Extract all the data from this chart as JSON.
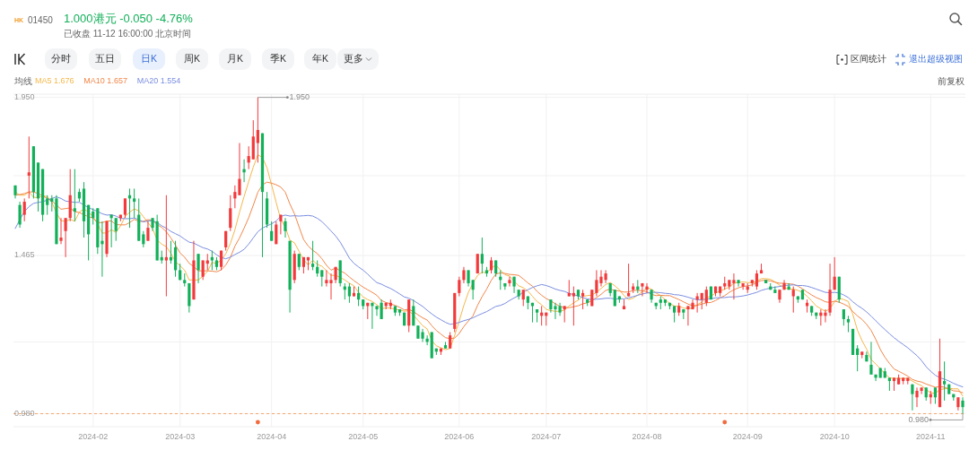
{
  "chart_data": {
    "type": "candlestick",
    "title": "1.000港元 -0.050 -4.76%",
    "subtitle": "已收盘 11-12 16:00:00 北京时间",
    "legend_title": "均线",
    "legend": "top left",
    "grid": true,
    "ylim": [
      0.94,
      1.96
    ],
    "yticks": [
      {
        "value": 1.95,
        "label": "1.950"
      },
      {
        "value": 1.71,
        "label": null
      },
      1.465,
      {
        "value": 1.2,
        "label": null
      },
      {
        "value": 0.98,
        "label": "0.980"
      }
    ],
    "ref_lines": [
      {
        "axis": "y",
        "value": 0.98,
        "color": "#f5a46c",
        "line_style": "dashed"
      }
    ],
    "annotations": [
      "1.950",
      {
        "text": "0.980",
        "y": 0.98
      },
      "HK",
      "01450",
      "分时",
      "五日",
      "日K",
      "周K",
      "月K",
      "季K",
      "年K",
      "更多",
      "区间统计",
      "退出超级视图",
      "前复权"
    ],
    "categories": [
      null,
      null,
      null,
      null,
      null,
      null,
      null,
      null,
      null,
      null,
      null,
      null,
      null,
      null,
      null,
      null,
      null,
      "2024-02",
      null,
      null,
      null,
      null,
      null,
      null,
      null,
      null,
      null,
      null,
      null,
      null,
      null,
      null,
      null,
      null,
      null,
      null,
      "2024-03",
      null,
      null,
      null,
      null,
      null,
      null,
      null,
      null,
      null,
      null,
      null,
      null,
      null,
      null,
      null,
      null,
      null,
      null,
      null,
      "2024-04",
      null,
      null,
      null,
      null,
      null,
      null,
      null,
      null,
      null,
      null,
      null,
      null,
      null,
      null,
      null,
      null,
      null,
      null,
      null,
      "2024-05",
      null,
      null,
      null,
      null,
      null,
      null,
      null,
      null,
      null,
      null,
      null,
      null,
      null,
      null,
      null,
      null,
      null,
      null,
      null,
      null,
      "2024-06",
      null,
      null,
      null,
      null,
      null,
      null,
      null,
      null,
      null,
      null,
      null,
      null,
      null,
      null,
      null,
      null,
      null,
      null,
      "2024-07",
      null,
      null,
      null,
      null,
      null,
      null,
      null,
      null,
      null,
      null,
      null,
      null,
      null,
      null,
      null,
      null,
      null,
      null,
      null,
      null,
      null,
      "2024-08",
      null,
      null,
      null,
      null,
      null,
      null,
      null,
      null,
      null,
      null,
      null,
      null,
      null,
      null,
      null,
      null,
      null,
      null,
      null,
      null,
      null,
      "2024-09",
      null,
      null,
      null,
      null,
      null,
      null,
      null,
      null,
      null,
      null,
      null,
      null,
      null,
      null,
      null,
      null,
      null,
      null,
      "2024-10",
      null,
      null,
      null,
      null,
      null,
      null,
      null,
      null,
      null,
      null,
      null,
      null,
      null,
      null,
      null,
      null,
      null,
      null,
      null,
      null,
      "2024-11",
      null,
      null,
      null,
      null,
      null,
      null,
      null
    ],
    "ohlc": [
      [
        1.68,
        1.68,
        1.64,
        1.65
      ],
      [
        1.62,
        1.63,
        1.55,
        1.56
      ],
      [
        1.59,
        1.64,
        1.57,
        1.63
      ],
      [
        1.71,
        1.83,
        1.64,
        1.72
      ],
      [
        1.8,
        1.8,
        1.64,
        1.66
      ],
      [
        1.75,
        1.75,
        1.6,
        1.64
      ],
      [
        1.73,
        1.73,
        1.57,
        1.59
      ],
      [
        1.64,
        1.65,
        1.59,
        1.62
      ],
      [
        1.64,
        1.65,
        1.6,
        1.63
      ],
      [
        1.64,
        1.65,
        1.5,
        1.5
      ],
      [
        1.51,
        1.58,
        1.5,
        1.52
      ],
      [
        1.54,
        1.58,
        1.46,
        1.58
      ],
      [
        1.58,
        1.73,
        1.57,
        1.65
      ],
      [
        1.61,
        1.73,
        1.57,
        1.6
      ],
      [
        1.66,
        1.67,
        1.63,
        1.64
      ],
      [
        1.67,
        1.69,
        1.52,
        1.57
      ],
      [
        1.62,
        1.62,
        1.45,
        1.53
      ],
      [
        1.6,
        1.61,
        1.56,
        1.58
      ],
      [
        1.61,
        1.61,
        1.47,
        1.49
      ],
      [
        1.51,
        1.57,
        1.4,
        1.5
      ],
      [
        1.47,
        1.57,
        1.46,
        1.57
      ],
      [
        1.59,
        1.59,
        1.49,
        1.58
      ],
      [
        1.58,
        1.58,
        1.51,
        1.54
      ],
      [
        1.58,
        1.59,
        1.57,
        1.59
      ],
      [
        1.59,
        1.64,
        1.58,
        1.64
      ],
      [
        1.65,
        1.67,
        1.55,
        1.64
      ],
      [
        1.64,
        1.67,
        1.58,
        1.63
      ],
      [
        1.59,
        1.64,
        1.51,
        1.51
      ],
      [
        1.53,
        1.54,
        1.49,
        1.5
      ],
      [
        1.51,
        1.57,
        1.51,
        1.55
      ],
      [
        1.58,
        1.58,
        1.54,
        1.55
      ],
      [
        1.57,
        1.59,
        1.45,
        1.45
      ],
      [
        1.46,
        1.48,
        1.44,
        1.45
      ],
      [
        1.45,
        1.65,
        1.34,
        1.46
      ],
      [
        1.46,
        1.51,
        1.44,
        1.45
      ],
      [
        1.49,
        1.51,
        1.4,
        1.42
      ],
      [
        1.42,
        1.44,
        1.39,
        1.39
      ],
      [
        1.39,
        1.41,
        1.37,
        1.38
      ],
      [
        1.38,
        1.38,
        1.29,
        1.31
      ],
      [
        1.33,
        1.51,
        1.33,
        1.45
      ],
      [
        1.47,
        1.47,
        1.38,
        1.42
      ],
      [
        1.4,
        1.45,
        1.39,
        1.45
      ],
      [
        1.44,
        1.47,
        1.42,
        1.45
      ],
      [
        1.46,
        1.48,
        1.42,
        1.45
      ],
      [
        1.45,
        1.46,
        1.42,
        1.43
      ],
      [
        1.43,
        1.48,
        1.42,
        1.48
      ],
      [
        1.49,
        1.54,
        1.48,
        1.54
      ],
      [
        1.55,
        1.65,
        1.54,
        1.61
      ],
      [
        1.64,
        1.68,
        1.61,
        1.66
      ],
      [
        1.65,
        1.81,
        1.65,
        1.7
      ],
      [
        1.73,
        1.76,
        1.69,
        1.72
      ],
      [
        1.75,
        1.8,
        1.73,
        1.77
      ],
      [
        1.76,
        1.88,
        1.76,
        1.83
      ],
      [
        1.81,
        1.95,
        1.75,
        1.85
      ],
      [
        1.84,
        1.84,
        1.46,
        1.66
      ],
      [
        1.64,
        1.66,
        1.55,
        1.56
      ],
      [
        1.54,
        1.57,
        1.51,
        1.51
      ],
      [
        1.5,
        1.57,
        1.5,
        1.56
      ],
      [
        1.57,
        1.59,
        1.53,
        1.59
      ],
      [
        1.57,
        1.58,
        1.52,
        1.54
      ],
      [
        1.51,
        1.51,
        1.29,
        1.36
      ],
      [
        1.39,
        1.48,
        1.38,
        1.47
      ],
      [
        1.47,
        1.47,
        1.42,
        1.43
      ],
      [
        1.43,
        1.46,
        1.41,
        1.46
      ],
      [
        1.45,
        1.46,
        1.42,
        1.46
      ],
      [
        1.44,
        1.51,
        1.42,
        1.43
      ],
      [
        1.43,
        1.45,
        1.4,
        1.41
      ],
      [
        1.42,
        1.42,
        1.37,
        1.4
      ],
      [
        1.38,
        1.42,
        1.37,
        1.39
      ],
      [
        1.38,
        1.41,
        1.33,
        1.39
      ],
      [
        1.39,
        1.43,
        1.38,
        1.43
      ],
      [
        1.45,
        1.45,
        1.37,
        1.38
      ],
      [
        1.37,
        1.38,
        1.33,
        1.36
      ],
      [
        1.37,
        1.38,
        1.32,
        1.34
      ],
      [
        1.34,
        1.37,
        1.34,
        1.35
      ],
      [
        1.35,
        1.37,
        1.31,
        1.33
      ],
      [
        1.33,
        1.33,
        1.3,
        1.31
      ],
      [
        1.31,
        1.32,
        1.27,
        1.32
      ],
      [
        1.32,
        1.32,
        1.24,
        1.31
      ],
      [
        1.31,
        1.31,
        1.28,
        1.3
      ],
      [
        1.32,
        1.33,
        1.27,
        1.27
      ],
      [
        1.31,
        1.32,
        1.3,
        1.32
      ],
      [
        1.31,
        1.33,
        1.3,
        1.32
      ],
      [
        1.31,
        1.31,
        1.28,
        1.29
      ],
      [
        1.3,
        1.3,
        1.28,
        1.29
      ],
      [
        1.29,
        1.29,
        1.25,
        1.25
      ],
      [
        1.25,
        1.33,
        1.23,
        1.33
      ],
      [
        1.31,
        1.33,
        1.25,
        1.25
      ],
      [
        1.25,
        1.25,
        1.21,
        1.21
      ],
      [
        1.23,
        1.24,
        1.2,
        1.21
      ],
      [
        1.21,
        1.22,
        1.19,
        1.2
      ],
      [
        1.23,
        1.23,
        1.15,
        1.15
      ],
      [
        1.18,
        1.18,
        1.16,
        1.17
      ],
      [
        1.17,
        1.18,
        1.16,
        1.18
      ],
      [
        1.19,
        1.2,
        1.18,
        1.18
      ],
      [
        1.18,
        1.23,
        1.18,
        1.22
      ],
      [
        1.24,
        1.35,
        1.23,
        1.35
      ],
      [
        1.35,
        1.4,
        1.34,
        1.39
      ],
      [
        1.39,
        1.43,
        1.38,
        1.42
      ],
      [
        1.42,
        1.42,
        1.37,
        1.38
      ],
      [
        1.39,
        1.39,
        1.33,
        1.36
      ],
      [
        1.41,
        1.47,
        1.41,
        1.47
      ],
      [
        1.47,
        1.52,
        1.41,
        1.44
      ],
      [
        1.42,
        1.43,
        1.4,
        1.41
      ],
      [
        1.42,
        1.46,
        1.41,
        1.45
      ],
      [
        1.45,
        1.45,
        1.4,
        1.41
      ],
      [
        1.4,
        1.42,
        1.36,
        1.39
      ],
      [
        1.38,
        1.38,
        1.36,
        1.37
      ],
      [
        1.38,
        1.4,
        1.37,
        1.39
      ],
      [
        1.4,
        1.4,
        1.35,
        1.37
      ],
      [
        1.36,
        1.36,
        1.33,
        1.34
      ],
      [
        1.33,
        1.36,
        1.31,
        1.36
      ],
      [
        1.34,
        1.34,
        1.3,
        1.32
      ],
      [
        1.32,
        1.32,
        1.26,
        1.31
      ],
      [
        1.3,
        1.3,
        1.26,
        1.29
      ],
      [
        1.28,
        1.31,
        1.25,
        1.29
      ],
      [
        1.28,
        1.29,
        1.25,
        1.29
      ],
      [
        1.33,
        1.33,
        1.29,
        1.3
      ],
      [
        1.31,
        1.32,
        1.27,
        1.3
      ],
      [
        1.31,
        1.32,
        1.28,
        1.29
      ],
      [
        1.3,
        1.31,
        1.26,
        1.31
      ],
      [
        1.34,
        1.39,
        1.34,
        1.35
      ],
      [
        1.34,
        1.37,
        1.25,
        1.35
      ],
      [
        1.36,
        1.36,
        1.33,
        1.34
      ],
      [
        1.34,
        1.36,
        1.3,
        1.35
      ],
      [
        1.33,
        1.33,
        1.31,
        1.32
      ],
      [
        1.31,
        1.36,
        1.31,
        1.36
      ],
      [
        1.35,
        1.42,
        1.34,
        1.39
      ],
      [
        1.38,
        1.42,
        1.37,
        1.4
      ],
      [
        1.39,
        1.42,
        1.38,
        1.41
      ],
      [
        1.38,
        1.38,
        1.34,
        1.35
      ],
      [
        1.36,
        1.36,
        1.31,
        1.31
      ],
      [
        1.34,
        1.34,
        1.32,
        1.33
      ],
      [
        1.3,
        1.33,
        1.3,
        1.31
      ],
      [
        1.34,
        1.44,
        1.34,
        1.35
      ],
      [
        1.36,
        1.38,
        1.35,
        1.37
      ],
      [
        1.37,
        1.39,
        1.35,
        1.36
      ],
      [
        1.37,
        1.38,
        1.34,
        1.38
      ],
      [
        1.36,
        1.38,
        1.35,
        1.37
      ],
      [
        1.36,
        1.36,
        1.32,
        1.33
      ],
      [
        1.32,
        1.32,
        1.3,
        1.31
      ],
      [
        1.33,
        1.34,
        1.3,
        1.32
      ],
      [
        1.33,
        1.33,
        1.31,
        1.32
      ],
      [
        1.32,
        1.32,
        1.3,
        1.31
      ],
      [
        1.31,
        1.31,
        1.26,
        1.29
      ],
      [
        1.29,
        1.32,
        1.28,
        1.31
      ],
      [
        1.3,
        1.3,
        1.27,
        1.29
      ],
      [
        1.3,
        1.31,
        1.25,
        1.31
      ],
      [
        1.3,
        1.33,
        1.3,
        1.32
      ],
      [
        1.33,
        1.35,
        1.29,
        1.34
      ],
      [
        1.33,
        1.35,
        1.3,
        1.35
      ],
      [
        1.32,
        1.37,
        1.31,
        1.36
      ],
      [
        1.37,
        1.37,
        1.33,
        1.33
      ],
      [
        1.35,
        1.37,
        1.34,
        1.37
      ],
      [
        1.35,
        1.37,
        1.34,
        1.37
      ],
      [
        1.37,
        1.4,
        1.36,
        1.38
      ],
      [
        1.37,
        1.39,
        1.36,
        1.39
      ],
      [
        1.38,
        1.41,
        1.33,
        1.39
      ],
      [
        1.39,
        1.39,
        1.37,
        1.38
      ],
      [
        1.37,
        1.38,
        1.36,
        1.38
      ],
      [
        1.36,
        1.38,
        1.35,
        1.37
      ],
      [
        1.38,
        1.39,
        1.37,
        1.39
      ],
      [
        1.37,
        1.42,
        1.36,
        1.41
      ],
      [
        1.41,
        1.44,
        1.41,
        1.42
      ],
      [
        1.39,
        1.39,
        1.38,
        1.38
      ],
      [
        1.37,
        1.38,
        1.36,
        1.36
      ],
      [
        1.36,
        1.37,
        1.35,
        1.35
      ],
      [
        1.33,
        1.36,
        1.32,
        1.36
      ],
      [
        1.36,
        1.39,
        1.36,
        1.38
      ],
      [
        1.37,
        1.38,
        1.36,
        1.36
      ],
      [
        1.34,
        1.37,
        1.29,
        1.36
      ],
      [
        1.34,
        1.34,
        1.32,
        1.33
      ],
      [
        1.36,
        1.36,
        1.33,
        1.33
      ],
      [
        1.31,
        1.33,
        1.29,
        1.32
      ],
      [
        1.31,
        1.31,
        1.28,
        1.29
      ],
      [
        1.29,
        1.29,
        1.27,
        1.28
      ],
      [
        1.28,
        1.3,
        1.25,
        1.29
      ],
      [
        1.28,
        1.3,
        1.26,
        1.29
      ],
      [
        1.29,
        1.44,
        1.28,
        1.36
      ],
      [
        1.36,
        1.46,
        1.36,
        1.4
      ],
      [
        1.4,
        1.4,
        1.32,
        1.33
      ],
      [
        1.3,
        1.3,
        1.25,
        1.27
      ],
      [
        1.27,
        1.28,
        1.23,
        1.26
      ],
      [
        1.24,
        1.24,
        1.16,
        1.16
      ],
      [
        1.18,
        1.19,
        1.11,
        1.16
      ],
      [
        1.16,
        1.17,
        1.15,
        1.17
      ],
      [
        1.16,
        1.17,
        1.14,
        1.14
      ],
      [
        1.13,
        1.2,
        1.1,
        1.1
      ],
      [
        1.1,
        1.1,
        1.08,
        1.09
      ],
      [
        1.12,
        1.12,
        1.09,
        1.09
      ],
      [
        1.11,
        1.12,
        1.09,
        1.09
      ],
      [
        1.09,
        1.09,
        1.05,
        1.08
      ],
      [
        1.08,
        1.09,
        1.05,
        1.09
      ],
      [
        1.07,
        1.1,
        1.07,
        1.09
      ],
      [
        1.08,
        1.09,
        1.07,
        1.09
      ],
      [
        1.08,
        1.09,
        1.07,
        1.09
      ],
      [
        1.07,
        1.07,
        0.99,
        1.04
      ],
      [
        1.03,
        1.06,
        1.0,
        1.05
      ],
      [
        1.05,
        1.06,
        1.04,
        1.06
      ],
      [
        1.06,
        1.06,
        1.02,
        1.03
      ],
      [
        1.03,
        1.05,
        1.01,
        1.04
      ],
      [
        1.06,
        1.06,
        1.01,
        1.03
      ],
      [
        1.0,
        1.21,
        1.0,
        1.11
      ],
      [
        1.08,
        1.14,
        1.02,
        1.07
      ],
      [
        1.07,
        1.07,
        1.04,
        1.04
      ],
      [
        1.04,
        1.04,
        1.02,
        1.03
      ],
      [
        1.0,
        1.03,
        0.99,
        1.03
      ],
      [
        1.02,
        1.03,
        0.98,
        1.0
      ]
    ],
    "colors": [
      "#13b05a",
      "#13b05a",
      "#f23a3c",
      "#f23a3c",
      "#13b05a",
      "#13b05a",
      "#13b05a",
      "#13b05a",
      "#13b05a",
      "#13b05a",
      "#f23a3c",
      "#f23a3c",
      "#f23a3c",
      "#13b05a",
      "#13b05a",
      "#13b05a",
      "#13b05a",
      "#13b05a",
      "#13b05a",
      "#13b05a",
      "#f23a3c",
      "#13b05a",
      "#13b05a",
      "#f23a3c",
      "#f23a3c",
      "#13b05a",
      "#13b05a",
      "#13b05a",
      "#13b05a",
      "#f23a3c",
      "#13b05a",
      "#13b05a",
      "#13b05a",
      "#f23a3c",
      "#13b05a",
      "#13b05a",
      "#13b05a",
      "#13b05a",
      "#13b05a",
      "#f23a3c",
      "#13b05a",
      "#f23a3c",
      "#f23a3c",
      "#13b05a",
      "#13b05a",
      "#f23a3c",
      "#f23a3c",
      "#f23a3c",
      "#f23a3c",
      "#f23a3c",
      "#13b05a",
      "#f23a3c",
      "#f23a3c",
      "#f23a3c",
      "#13b05a",
      "#13b05a",
      "#13b05a",
      "#f23a3c",
      "#f23a3c",
      "#13b05a",
      "#13b05a",
      "#f23a3c",
      "#13b05a",
      "#f23a3c",
      "#f23a3c",
      "#13b05a",
      "#13b05a",
      "#13b05a",
      "#f23a3c",
      "#f23a3c",
      "#f23a3c",
      "#13b05a",
      "#13b05a",
      "#13b05a",
      "#f23a3c",
      "#13b05a",
      "#13b05a",
      "#f23a3c",
      "#13b05a",
      "#13b05a",
      "#13b05a",
      "#f23a3c",
      "#f23a3c",
      "#13b05a",
      "#13b05a",
      "#13b05a",
      "#f23a3c",
      "#13b05a",
      "#13b05a",
      "#13b05a",
      "#13b05a",
      "#13b05a",
      "#13b05a",
      "#f23a3c",
      "#13b05a",
      "#f23a3c",
      "#f23a3c",
      "#f23a3c",
      "#f23a3c",
      "#13b05a",
      "#13b05a",
      "#f23a3c",
      "#13b05a",
      "#13b05a",
      "#f23a3c",
      "#13b05a",
      "#13b05a",
      "#13b05a",
      "#f23a3c",
      "#13b05a",
      "#13b05a",
      "#f23a3c",
      "#13b05a",
      "#13b05a",
      "#13b05a",
      "#f23a3c",
      "#f23a3c",
      "#13b05a",
      "#13b05a",
      "#13b05a",
      "#f23a3c",
      "#f23a3c",
      "#f23a3c",
      "#13b05a",
      "#f23a3c",
      "#13b05a",
      "#f23a3c",
      "#f23a3c",
      "#f23a3c",
      "#f23a3c",
      "#13b05a",
      "#13b05a",
      "#13b05a",
      "#f23a3c",
      "#f23a3c",
      "#f23a3c",
      "#13b05a",
      "#f23a3c",
      "#f23a3c",
      "#13b05a",
      "#13b05a",
      "#13b05a",
      "#13b05a",
      "#13b05a",
      "#13b05a",
      "#f23a3c",
      "#13b05a",
      "#f23a3c",
      "#f23a3c",
      "#f23a3c",
      "#f23a3c",
      "#f23a3c",
      "#13b05a",
      "#f23a3c",
      "#f23a3c",
      "#f23a3c",
      "#f23a3c",
      "#f23a3c",
      "#13b05a",
      "#f23a3c",
      "#f23a3c",
      "#f23a3c",
      "#f23a3c",
      "#f23a3c",
      "#13b05a",
      "#13b05a",
      "#13b05a",
      "#f23a3c",
      "#f23a3c",
      "#13b05a",
      "#f23a3c",
      "#13b05a",
      "#13b05a",
      "#f23a3c",
      "#13b05a",
      "#13b05a",
      "#f23a3c",
      "#f23a3c",
      "#f23a3c",
      "#f23a3c",
      "#13b05a",
      "#13b05a",
      "#13b05a",
      "#13b05a",
      "#13b05a",
      "#f23a3c",
      "#13b05a",
      "#13b05a",
      "#13b05a",
      "#13b05a",
      "#13b05a",
      "#13b05a",
      "#f23a3c",
      "#f23a3c",
      "#f23a3c",
      "#f23a3c",
      "#13b05a",
      "#f23a3c",
      "#f23a3c",
      "#13b05a",
      "#f23a3c",
      "#13b05a",
      "#f23a3c",
      "#13b05a",
      "#13b05a",
      "#13b05a",
      "#f23a3c",
      "#13b05a"
    ],
    "series": [
      {
        "name": "MA5 1.676",
        "type": "line",
        "color": "#f5b84a",
        "values": [
          1.66,
          1.65,
          1.65,
          1.66,
          1.644,
          1.642,
          1.648,
          1.646,
          1.628,
          1.596,
          1.572,
          1.57,
          1.576,
          1.57,
          1.598,
          1.608,
          1.598,
          1.584,
          1.562,
          1.534,
          1.534,
          1.544,
          1.536,
          1.556,
          1.584,
          1.598,
          1.608,
          1.602,
          1.584,
          1.566,
          1.548,
          1.512,
          1.5,
          1.492,
          1.472,
          1.446,
          1.434,
          1.42,
          1.39,
          1.39,
          1.39,
          1.402,
          1.416,
          1.444,
          1.44,
          1.452,
          1.47,
          1.502,
          1.544,
          1.598,
          1.646,
          1.692,
          1.736,
          1.774,
          1.766,
          1.734,
          1.682,
          1.628,
          1.576,
          1.552,
          1.512,
          1.504,
          1.478,
          1.452,
          1.436,
          1.45,
          1.438,
          1.432,
          1.418,
          1.404,
          1.404,
          1.398,
          1.39,
          1.38,
          1.372,
          1.352,
          1.338,
          1.33,
          1.324,
          1.314,
          1.302,
          1.304,
          1.304,
          1.3,
          1.298,
          1.294,
          1.296,
          1.282,
          1.266,
          1.25,
          1.24,
          1.204,
          1.188,
          1.182,
          1.176,
          1.18,
          1.22,
          1.264,
          1.312,
          1.352,
          1.38,
          1.404,
          1.414,
          1.412,
          1.426,
          1.436,
          1.42,
          1.406,
          1.402,
          1.386,
          1.372,
          1.366,
          1.356,
          1.34,
          1.324,
          1.314,
          1.3,
          1.296,
          1.294,
          1.294,
          1.298,
          1.31,
          1.32,
          1.328,
          1.34,
          1.342,
          1.344,
          1.352,
          1.364,
          1.376,
          1.382,
          1.372,
          1.36,
          1.342,
          1.33,
          1.334,
          1.344,
          1.354,
          1.366,
          1.362,
          1.35,
          1.342,
          1.33,
          1.318,
          1.31,
          1.31,
          1.304,
          1.302,
          1.304,
          1.314,
          1.322,
          1.336,
          1.34,
          1.35,
          1.356,
          1.362,
          1.368,
          1.38,
          1.382,
          1.384,
          1.382,
          1.382,
          1.386,
          1.394,
          1.394,
          1.392,
          1.384,
          1.374,
          1.366,
          1.362,
          1.362,
          1.358,
          1.352,
          1.34,
          1.326,
          1.31,
          1.302,
          1.294,
          1.302,
          1.324,
          1.334,
          1.33,
          1.324,
          1.284,
          1.236,
          1.204,
          1.178,
          1.146,
          1.132,
          1.118,
          1.102,
          1.09,
          1.088,
          1.088,
          1.088,
          1.088,
          1.08,
          1.072,
          1.066,
          1.054,
          1.044,
          1.042,
          1.054,
          1.056,
          1.058,
          1.056,
          1.056,
          1.034
        ]
      },
      {
        "name": "MA10 1.657",
        "type": "line",
        "color": "#f2874a",
        "values": [
          1.65,
          1.652,
          1.655,
          1.66,
          1.66,
          1.655,
          1.648,
          1.64,
          1.632,
          1.62,
          1.607,
          1.609,
          1.611,
          1.599,
          1.597,
          1.59,
          1.584,
          1.58,
          1.566,
          1.566,
          1.571,
          1.571,
          1.56,
          1.559,
          1.559,
          1.566,
          1.576,
          1.569,
          1.57,
          1.575,
          1.573,
          1.56,
          1.551,
          1.538,
          1.519,
          1.497,
          1.473,
          1.46,
          1.441,
          1.431,
          1.418,
          1.418,
          1.418,
          1.417,
          1.415,
          1.421,
          1.436,
          1.459,
          1.494,
          1.519,
          1.549,
          1.581,
          1.619,
          1.659,
          1.682,
          1.69,
          1.687,
          1.682,
          1.675,
          1.659,
          1.623,
          1.593,
          1.553,
          1.514,
          1.494,
          1.481,
          1.471,
          1.455,
          1.435,
          1.42,
          1.427,
          1.418,
          1.411,
          1.399,
          1.388,
          1.378,
          1.368,
          1.36,
          1.352,
          1.343,
          1.327,
          1.321,
          1.317,
          1.312,
          1.306,
          1.298,
          1.3,
          1.293,
          1.283,
          1.274,
          1.267,
          1.25,
          1.235,
          1.224,
          1.213,
          1.21,
          1.212,
          1.226,
          1.247,
          1.264,
          1.28,
          1.312,
          1.339,
          1.362,
          1.389,
          1.408,
          1.412,
          1.41,
          1.407,
          1.406,
          1.404,
          1.393,
          1.381,
          1.371,
          1.355,
          1.343,
          1.333,
          1.326,
          1.317,
          1.309,
          1.306,
          1.305,
          1.308,
          1.311,
          1.317,
          1.32,
          1.327,
          1.336,
          1.346,
          1.358,
          1.362,
          1.358,
          1.356,
          1.353,
          1.353,
          1.358,
          1.358,
          1.357,
          1.354,
          1.346,
          1.342,
          1.343,
          1.342,
          1.342,
          1.336,
          1.33,
          1.323,
          1.316,
          1.311,
          1.312,
          1.316,
          1.32,
          1.321,
          1.327,
          1.335,
          1.342,
          1.352,
          1.36,
          1.366,
          1.37,
          1.372,
          1.375,
          1.383,
          1.388,
          1.389,
          1.387,
          1.383,
          1.38,
          1.38,
          1.378,
          1.377,
          1.371,
          1.363,
          1.353,
          1.344,
          1.336,
          1.33,
          1.323,
          1.321,
          1.325,
          1.322,
          1.316,
          1.309,
          1.293,
          1.28,
          1.269,
          1.254,
          1.235,
          1.208,
          1.177,
          1.153,
          1.134,
          1.117,
          1.11,
          1.103,
          1.095,
          1.085,
          1.08,
          1.077,
          1.071,
          1.066,
          1.061,
          1.063,
          1.061,
          1.056,
          1.05,
          1.049,
          1.044
        ]
      },
      {
        "name": "MA20 1.554",
        "type": "line",
        "color": "#7b8ee0",
        "values": [
          1.548,
          1.575,
          1.6,
          1.615,
          1.625,
          1.628,
          1.63,
          1.635,
          1.64,
          1.645,
          1.64,
          1.632,
          1.63,
          1.628,
          1.628,
          1.62,
          1.612,
          1.606,
          1.6,
          1.593,
          1.589,
          1.59,
          1.586,
          1.579,
          1.578,
          1.578,
          1.58,
          1.575,
          1.568,
          1.571,
          1.572,
          1.566,
          1.556,
          1.549,
          1.539,
          1.532,
          1.525,
          1.515,
          1.506,
          1.503,
          1.496,
          1.489,
          1.485,
          1.478,
          1.467,
          1.459,
          1.455,
          1.46,
          1.468,
          1.475,
          1.484,
          1.5,
          1.519,
          1.538,
          1.549,
          1.556,
          1.562,
          1.571,
          1.585,
          1.589,
          1.586,
          1.587,
          1.586,
          1.587,
          1.588,
          1.586,
          1.579,
          1.569,
          1.555,
          1.54,
          1.525,
          1.506,
          1.482,
          1.457,
          1.441,
          1.43,
          1.42,
          1.408,
          1.394,
          1.382,
          1.377,
          1.37,
          1.364,
          1.356,
          1.347,
          1.338,
          1.334,
          1.327,
          1.318,
          1.309,
          1.297,
          1.286,
          1.276,
          1.268,
          1.26,
          1.254,
          1.256,
          1.26,
          1.265,
          1.269,
          1.274,
          1.281,
          1.287,
          1.293,
          1.301,
          1.309,
          1.312,
          1.318,
          1.327,
          1.335,
          1.342,
          1.353,
          1.36,
          1.367,
          1.372,
          1.376,
          1.373,
          1.368,
          1.362,
          1.358,
          1.355,
          1.349,
          1.345,
          1.341,
          1.336,
          1.332,
          1.33,
          1.331,
          1.332,
          1.334,
          1.334,
          1.332,
          1.332,
          1.332,
          1.335,
          1.339,
          1.343,
          1.347,
          1.35,
          1.352,
          1.352,
          1.351,
          1.349,
          1.348,
          1.345,
          1.344,
          1.341,
          1.337,
          1.333,
          1.329,
          1.329,
          1.332,
          1.332,
          1.335,
          1.336,
          1.336,
          1.338,
          1.338,
          1.339,
          1.341,
          1.344,
          1.348,
          1.352,
          1.358,
          1.362,
          1.365,
          1.368,
          1.37,
          1.373,
          1.374,
          1.375,
          1.373,
          1.373,
          1.371,
          1.367,
          1.362,
          1.357,
          1.352,
          1.351,
          1.352,
          1.35,
          1.344,
          1.336,
          1.323,
          1.312,
          1.303,
          1.292,
          1.279,
          1.265,
          1.251,
          1.238,
          1.225,
          1.213,
          1.202,
          1.192,
          1.182,
          1.17,
          1.158,
          1.143,
          1.124,
          1.11,
          1.098,
          1.09,
          1.086,
          1.08,
          1.073,
          1.067,
          1.062
        ]
      }
    ]
  }
}
